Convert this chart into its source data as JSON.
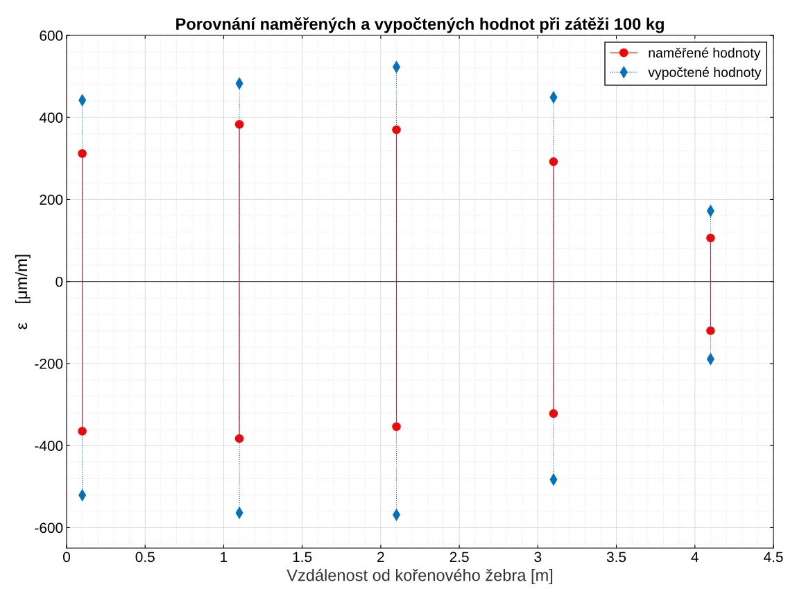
{
  "chart_data": {
    "type": "line",
    "title": "Porovnání naměřených a vypočtených hodnot při zátěži 100 kg",
    "xlabel": "Vzdálenost od kořenového žebra [m]",
    "ylabel": "ε    [μm/m]",
    "xlim": [
      0,
      4.5
    ],
    "xticks": [
      0,
      0.5,
      1,
      1.5,
      2,
      2.5,
      3,
      3.5,
      4,
      4.5
    ],
    "ylim": [
      -650,
      600
    ],
    "yticks": [
      -600,
      -400,
      -200,
      0,
      200,
      400,
      600
    ],
    "grid": true,
    "legend": "top right",
    "ref_lines": [
      {
        "axis": "y",
        "value": 0,
        "color": "#000000",
        "line_style": "solid"
      }
    ],
    "series": [
      {
        "name": "naměřené hodnoty",
        "color": "#ff0000",
        "marker": "circle",
        "line_style": "solid",
        "x": [
          0.1,
          0.1
        ],
        "values": [
          312,
          -365
        ]
      },
      {
        "color": "#ff0000",
        "marker": "circle",
        "line_style": "solid",
        "x": [
          1.1,
          1.1
        ],
        "values": [
          383,
          -383
        ]
      },
      {
        "color": "#ff0000",
        "marker": "circle",
        "line_style": "solid",
        "x": [
          2.1,
          2.1
        ],
        "values": [
          370,
          -354
        ]
      },
      {
        "color": "#ff0000",
        "marker": "circle",
        "line_style": "solid",
        "x": [
          3.1,
          3.1
        ],
        "values": [
          292,
          -322
        ]
      },
      {
        "color": "#ff0000",
        "marker": "circle",
        "line_style": "solid",
        "x": [
          4.1,
          4.1
        ],
        "values": [
          106,
          -120
        ]
      },
      {
        "name": "vypočtené hodnoty",
        "color": "#0072bd",
        "marker": "diamond",
        "line_style": "dotted",
        "x": [
          0.1,
          0.1
        ],
        "values": [
          442,
          -521
        ]
      },
      {
        "color": "#0072bd",
        "marker": "diamond",
        "line_style": "dotted",
        "x": [
          1.1,
          1.1
        ],
        "values": [
          483,
          -564
        ]
      },
      {
        "color": "#0072bd",
        "marker": "diamond",
        "line_style": "dotted",
        "x": [
          2.1,
          2.1
        ],
        "values": [
          523,
          -569
        ]
      },
      {
        "color": "#0072bd",
        "marker": "diamond",
        "line_style": "dotted",
        "x": [
          3.1,
          3.1
        ],
        "values": [
          449,
          -483
        ]
      },
      {
        "color": "#0072bd",
        "marker": "diamond",
        "line_style": "dotted",
        "x": [
          4.1,
          4.1
        ],
        "values": [
          172,
          -189
        ]
      }
    ]
  }
}
